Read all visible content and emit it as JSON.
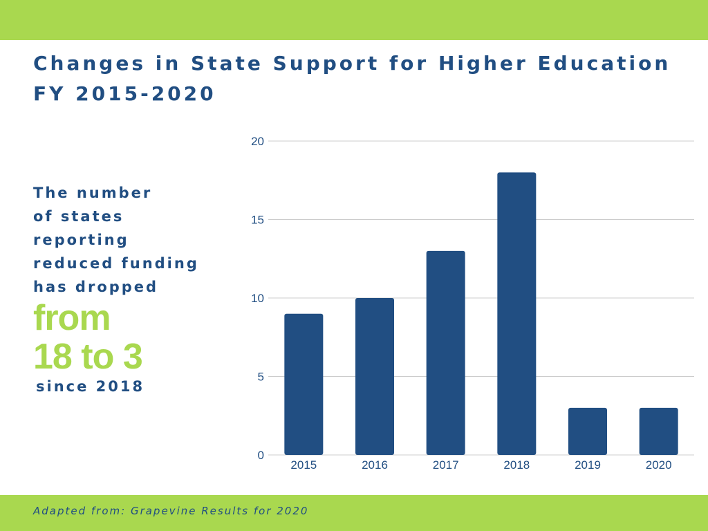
{
  "header": {
    "title_line1": "Changes in State Support for Higher Education",
    "title_line2": "FY 2015-2020"
  },
  "callout": {
    "lines": [
      "The number",
      "of states",
      "reporting",
      "reduced funding",
      "has dropped"
    ],
    "highlight_line1": "from",
    "highlight_line2": "18 to 3",
    "since": "since 2018"
  },
  "footer": {
    "source": "Adapted from: Grapevine Results for 2020"
  },
  "colors": {
    "band": "#a9d84f",
    "bar": "#214e82",
    "text": "#214e82",
    "highlight": "#a9d84f",
    "grid": "#cccccc"
  },
  "chart_data": {
    "type": "bar",
    "title": "",
    "xlabel": "",
    "ylabel": "",
    "categories": [
      "2015",
      "2016",
      "2017",
      "2018",
      "2019",
      "2020"
    ],
    "values": [
      9,
      10,
      13,
      18,
      3,
      3
    ],
    "ylim": [
      0,
      20
    ],
    "yticks": [
      0,
      5,
      10,
      15,
      20
    ],
    "grid": true,
    "legend": "none"
  }
}
